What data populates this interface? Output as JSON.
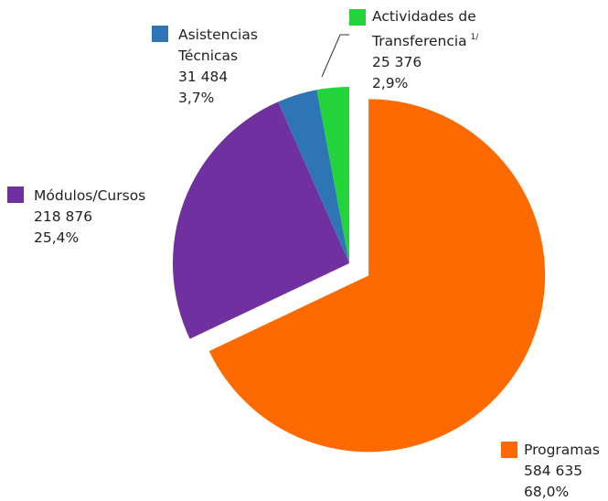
{
  "chart_data": {
    "type": "pie",
    "categories": [
      "Programas",
      "Módulos/Cursos",
      "Asistencias Técnicas",
      "Actividades de Transferencia"
    ],
    "values": [
      584635,
      218876,
      31484,
      25376
    ],
    "value_labels": [
      "584 635",
      "218 876",
      "31 484",
      "25 376"
    ],
    "percentages": [
      68.0,
      25.4,
      3.7,
      2.9
    ],
    "percentage_labels": [
      "68,0%",
      "25,4%",
      "3,7%",
      "2,9%"
    ],
    "colors": [
      "#ff6a00",
      "#7030a0",
      "#2e75b6",
      "#22d33a"
    ],
    "footnote_mark": "1/"
  }
}
